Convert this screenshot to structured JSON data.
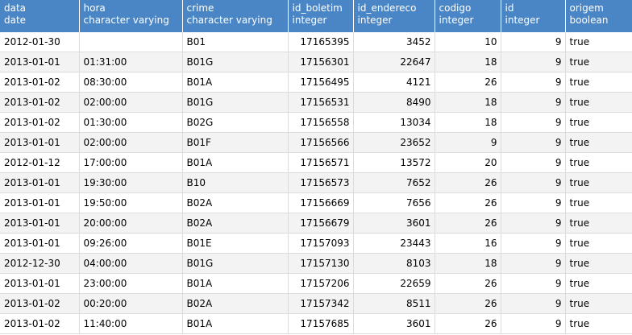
{
  "columns": [
    {
      "name": "data",
      "type": "date",
      "align": "left",
      "width": 98
    },
    {
      "name": "hora",
      "type": "character varying",
      "align": "left",
      "width": 128
    },
    {
      "name": "crime",
      "type": "character varying",
      "align": "left",
      "width": 131
    },
    {
      "name": "id_boletim",
      "type": "integer",
      "align": "right",
      "width": 81
    },
    {
      "name": "id_endereco",
      "type": "integer",
      "align": "right",
      "width": 101
    },
    {
      "name": "codigo",
      "type": "integer",
      "align": "right",
      "width": 82
    },
    {
      "name": "id",
      "type": "integer",
      "align": "right",
      "width": 80
    },
    {
      "name": "origem",
      "type": "boolean",
      "align": "left",
      "width": 83
    }
  ],
  "rows": [
    [
      "2012-01-30",
      "",
      "B01",
      "17165395",
      "3452",
      "10",
      "9",
      "true"
    ],
    [
      "2013-01-01",
      "01:31:00",
      "B01G",
      "17156301",
      "22647",
      "18",
      "9",
      "true"
    ],
    [
      "2013-01-02",
      "08:30:00",
      "B01A",
      "17156495",
      "4121",
      "26",
      "9",
      "true"
    ],
    [
      "2013-01-02",
      "02:00:00",
      "B01G",
      "17156531",
      "8490",
      "18",
      "9",
      "true"
    ],
    [
      "2013-01-02",
      "01:30:00",
      "B02G",
      "17156558",
      "13034",
      "18",
      "9",
      "true"
    ],
    [
      "2013-01-01",
      "02:00:00",
      "B01F",
      "17156566",
      "23652",
      "9",
      "9",
      "true"
    ],
    [
      "2012-01-12",
      "17:00:00",
      "B01A",
      "17156571",
      "13572",
      "20",
      "9",
      "true"
    ],
    [
      "2013-01-01",
      "19:30:00",
      "B10",
      "17156573",
      "7652",
      "26",
      "9",
      "true"
    ],
    [
      "2013-01-01",
      "19:50:00",
      "B02A",
      "17156669",
      "7656",
      "26",
      "9",
      "true"
    ],
    [
      "2013-01-01",
      "20:00:00",
      "B02A",
      "17156679",
      "3601",
      "26",
      "9",
      "true"
    ],
    [
      "2013-01-01",
      "09:26:00",
      "B01E",
      "17157093",
      "23443",
      "16",
      "9",
      "true"
    ],
    [
      "2012-12-30",
      "04:00:00",
      "B01G",
      "17157130",
      "8103",
      "18",
      "9",
      "true"
    ],
    [
      "2013-01-01",
      "23:00:00",
      "B01A",
      "17157206",
      "22659",
      "26",
      "9",
      "true"
    ],
    [
      "2013-01-02",
      "00:20:00",
      "B02A",
      "17157342",
      "8511",
      "26",
      "9",
      "true"
    ],
    [
      "2013-01-02",
      "11:40:00",
      "B01A",
      "17157685",
      "3601",
      "26",
      "9",
      "true"
    ]
  ]
}
